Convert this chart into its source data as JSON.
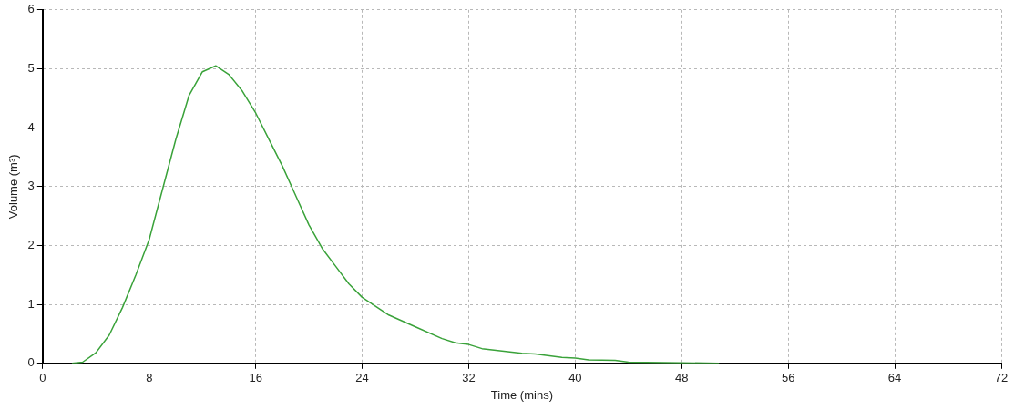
{
  "chart_data": {
    "type": "line",
    "xlabel": "Time (mins)",
    "ylabel": "Volume (m³)",
    "xlim": [
      0,
      72
    ],
    "xticks": [
      0,
      8,
      16,
      24,
      32,
      40,
      48,
      56,
      64,
      72
    ],
    "ylim": [
      0,
      6
    ],
    "yticks": [
      0,
      1,
      2,
      3,
      4,
      5,
      6
    ],
    "grid": true,
    "legend": false,
    "marker": "none",
    "line_style": "solid",
    "series": [
      {
        "color": "#3aa23a",
        "x": [
          2.2,
          3,
          4,
          5,
          6,
          7,
          8,
          9,
          10,
          11,
          12,
          13,
          14,
          15,
          16,
          17,
          18,
          19,
          20,
          21,
          22,
          23,
          24,
          26,
          28,
          30,
          31,
          32,
          33,
          36,
          37,
          39,
          40,
          41,
          43,
          44,
          48,
          50.8
        ],
        "values": [
          0,
          0.02,
          0.18,
          0.48,
          0.95,
          1.5,
          2.1,
          2.95,
          3.8,
          4.55,
          4.95,
          5.05,
          4.9,
          4.62,
          4.25,
          3.8,
          3.35,
          2.85,
          2.35,
          1.95,
          1.65,
          1.35,
          1.12,
          0.82,
          0.62,
          0.42,
          0.35,
          0.32,
          0.25,
          0.17,
          0.16,
          0.1,
          0.09,
          0.06,
          0.05,
          0.02,
          0.01,
          0
        ]
      }
    ]
  }
}
